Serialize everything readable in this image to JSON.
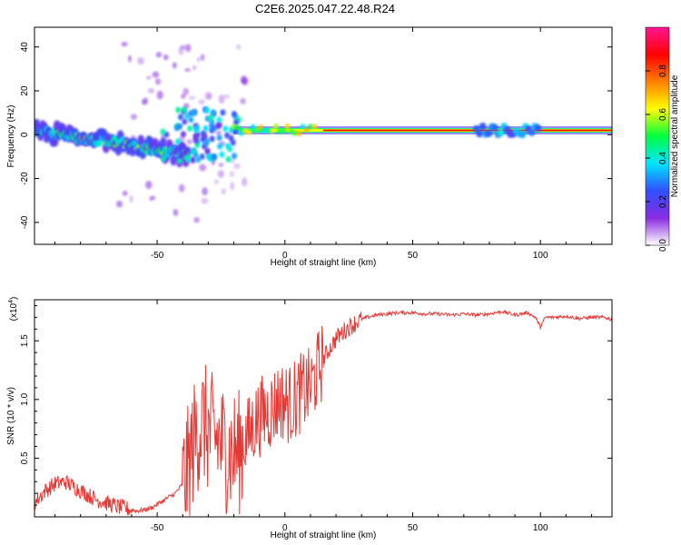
{
  "title": "C2E6.2025.047.22.48.R24",
  "colors": {
    "line": "#e53935",
    "frame": "#000000"
  },
  "chart_data": [
    {
      "type": "heatmap",
      "title": "C2E6.2025.047.22.48.R24",
      "xlabel": "Height of straight line (km)",
      "ylabel": "Frequency (Hz)",
      "xlim": [
        -98,
        128
      ],
      "ylim": [
        -50,
        49
      ],
      "x_ticks": [
        -50,
        0,
        50,
        100
      ],
      "y_ticks": [
        40,
        20,
        0,
        -20,
        -40
      ],
      "x_tick_labels": [
        "-50",
        "0",
        "50",
        "100"
      ],
      "y_tick_labels": [
        "40",
        "20",
        "0",
        "-20",
        "-40"
      ],
      "colorbar": {
        "label": "Normalized spectral amplitude",
        "range": [
          0,
          1
        ],
        "ticks": [
          0.0,
          0.2,
          0.4,
          0.6,
          0.8
        ],
        "tick_labels": [
          "0.0",
          "0.2",
          "0.4",
          "0.6",
          "0.8"
        ],
        "colormap": [
          "#ffffff",
          "#8a2be2",
          "#3050ff",
          "#00e5ff",
          "#00ff40",
          "#ffff00",
          "#ff8000",
          "#ff0000",
          "#ff1493"
        ]
      },
      "features": [
        {
          "name": "descending band",
          "x_range": [
            -98,
            -38
          ],
          "freq_start": 2,
          "freq_end": -9
        },
        {
          "name": "steady line",
          "x_range": [
            -20,
            128
          ],
          "freq": 2
        },
        {
          "name": "scattered echoes",
          "x_range": [
            -65,
            -15
          ],
          "freq_range": [
            -40,
            42
          ]
        }
      ]
    },
    {
      "type": "line",
      "xlabel": "Height of straight line (km)",
      "ylabel": "SNR (10 * v/v)",
      "y_multiplier": "(x10",
      "y_multiplier_exp": "4",
      "xlim": [
        -98,
        128
      ],
      "ylim": [
        0.0,
        1.85
      ],
      "x_ticks": [
        -50,
        0,
        50,
        100
      ],
      "y_ticks": [
        0.5,
        1.0,
        1.5
      ],
      "x_tick_labels": [
        "-50",
        "0",
        "50",
        "100"
      ],
      "y_tick_labels": [
        "0.5",
        "1.0",
        "1.5"
      ],
      "series": [
        {
          "x": [
            -98,
            -94,
            -90,
            -86,
            -82,
            -78,
            -74,
            -70,
            -66,
            -62,
            -58,
            -55,
            -52,
            -49,
            -46,
            -43,
            -40,
            -38,
            -36,
            -34,
            -32,
            -30,
            -28,
            -26,
            -24,
            -22,
            -20,
            -18,
            -16,
            -14,
            -12,
            -10,
            -8,
            -6,
            -4,
            -2,
            0,
            2,
            4,
            6,
            8,
            10,
            12,
            14,
            16,
            18,
            20,
            24,
            28,
            32,
            36,
            40,
            45,
            50,
            55,
            60,
            65,
            70,
            75,
            80,
            85,
            90,
            95,
            98,
            100,
            102,
            105,
            110,
            115,
            120,
            125,
            128
          ],
          "y": [
            0.12,
            0.22,
            0.28,
            0.3,
            0.25,
            0.2,
            0.15,
            0.12,
            0.09,
            0.07,
            0.05,
            0.06,
            0.08,
            0.12,
            0.16,
            0.2,
            0.28,
            0.4,
            0.6,
            0.75,
            0.8,
            0.72,
            0.68,
            0.66,
            0.6,
            0.55,
            0.55,
            0.55,
            0.66,
            0.7,
            0.8,
            0.85,
            0.88,
            0.9,
            0.95,
            1.0,
            0.98,
            0.96,
            1.0,
            1.05,
            1.08,
            1.1,
            1.2,
            1.3,
            1.38,
            1.45,
            1.52,
            1.6,
            1.66,
            1.7,
            1.72,
            1.73,
            1.74,
            1.74,
            1.73,
            1.73,
            1.72,
            1.73,
            1.72,
            1.73,
            1.75,
            1.72,
            1.74,
            1.7,
            1.62,
            1.7,
            1.7,
            1.71,
            1.69,
            1.7,
            1.7,
            1.68
          ]
        }
      ]
    }
  ]
}
